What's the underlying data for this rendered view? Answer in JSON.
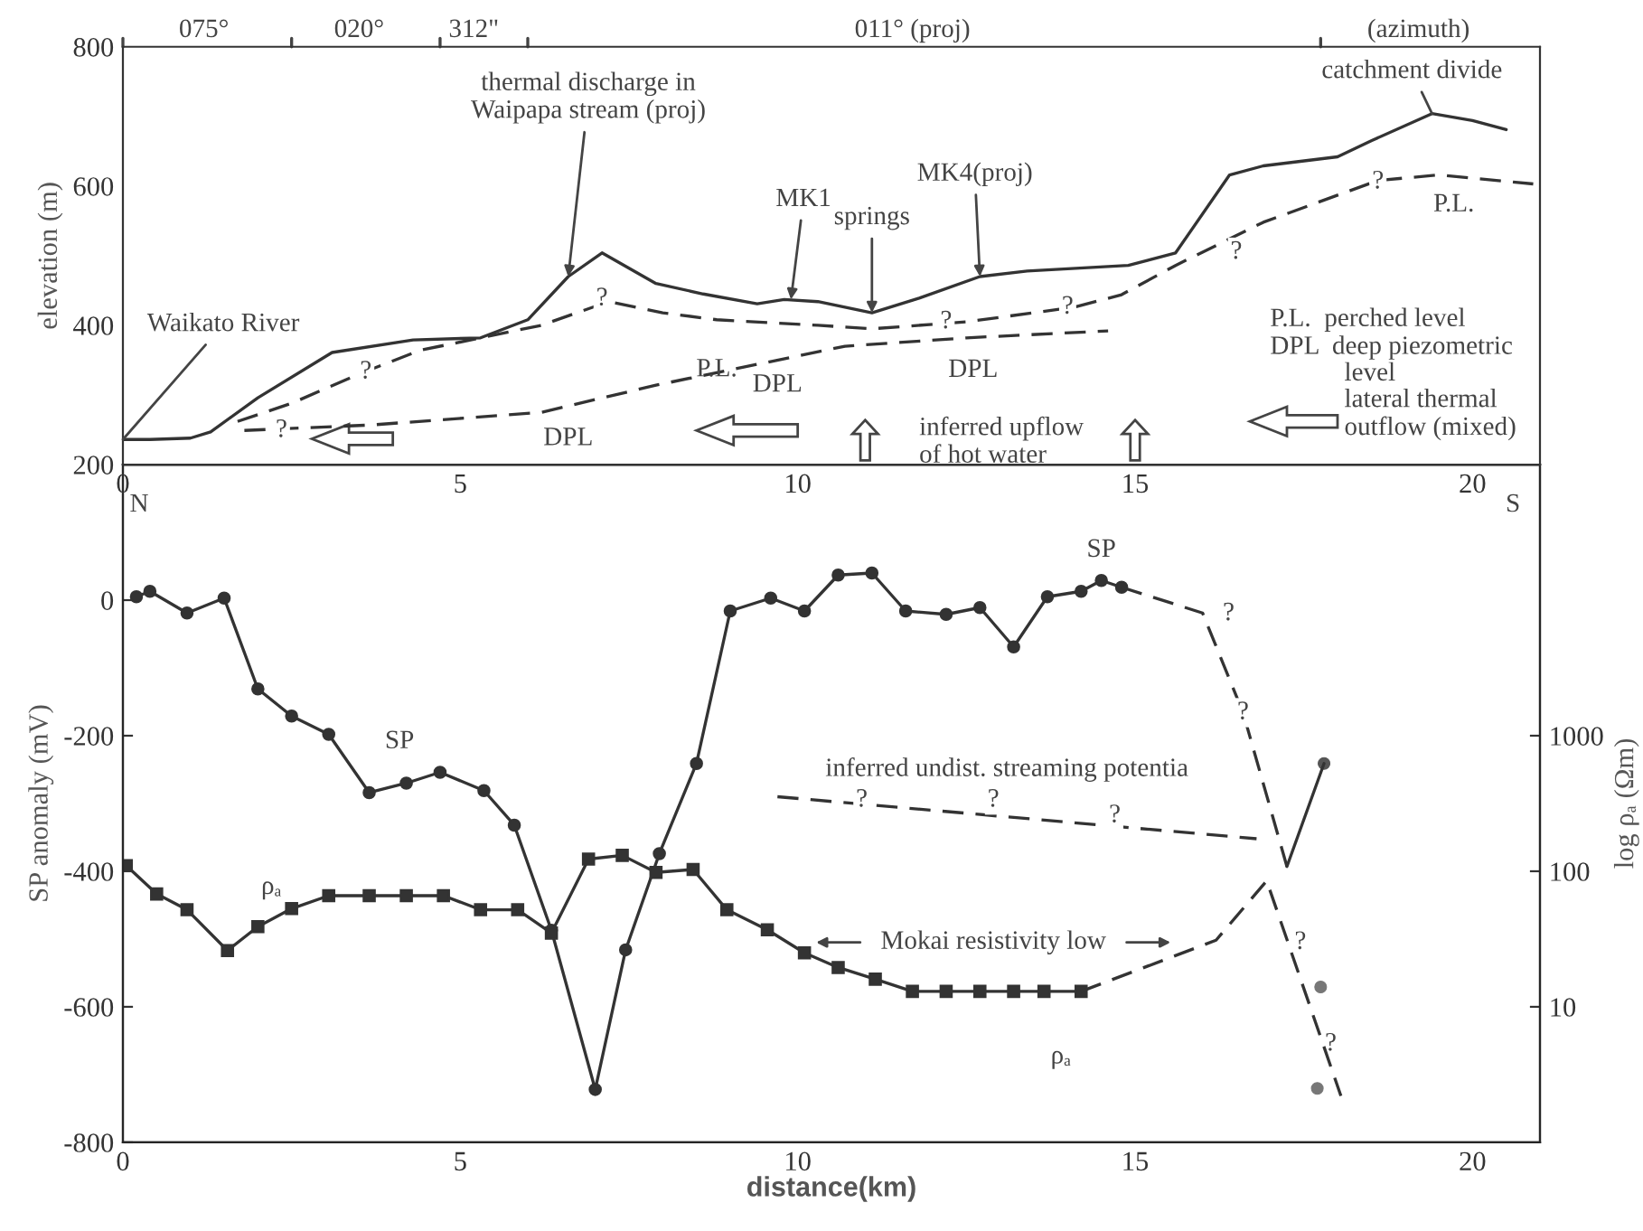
{
  "chart_data": [
    {
      "type": "line",
      "ylabel": "elevation (m)",
      "xlim": [
        0,
        21
      ],
      "ylim": [
        200,
        800
      ],
      "xticks": [
        0,
        5,
        10,
        15,
        20
      ],
      "yticks": [
        200,
        400,
        600,
        800
      ],
      "series": [
        {
          "color": "#333333",
          "line_style": "solid",
          "x": [
            0,
            0.4,
            1.0,
            1.3,
            2.0,
            3.1,
            4.3,
            5.3,
            6.0,
            6.6,
            7.1,
            7.9,
            8.6,
            9.4,
            9.8,
            10.3,
            11.1,
            11.8,
            12.7,
            13.4,
            14.9,
            15.6,
            16.4,
            16.9,
            18.0,
            18.5,
            19.4,
            20.0,
            20.5
          ],
          "values": [
            236,
            236,
            238,
            247,
            296,
            361,
            379,
            382,
            408,
            470,
            504,
            460,
            445,
            431,
            437,
            434,
            418,
            439,
            470,
            478,
            486,
            504,
            616,
            629,
            642,
            665,
            704,
            694,
            681
          ]
        },
        {
          "color": "#333333",
          "line_style": "dashed",
          "x": [
            1.7,
            2.5,
            3.5,
            4.4,
            6.2,
            7.2,
            8.0,
            8.8,
            10.3,
            11.1,
            12.5,
            14.1,
            14.8,
            15.6,
            16.9,
            18.6,
            19.5,
            20.9
          ],
          "values": [
            262,
            288,
            330,
            364,
            400,
            434,
            418,
            408,
            400,
            395,
            405,
            426,
            444,
            486,
            548,
            608,
            616,
            603
          ]
        },
        {
          "color": "#333333",
          "line_style": "dashed",
          "x": [
            1.8,
            3.7,
            6.2,
            7.9,
            9.2,
            10.7,
            12.5,
            14.6
          ],
          "values": [
            249,
            257,
            275,
            314,
            340,
            370,
            382,
            392
          ]
        }
      ],
      "annotations": [
        {
          "text": "Waikato River",
          "x": 0,
          "y": 236
        },
        {
          "text": "thermal discharge in\nWaipapa stream (proj)",
          "x": 6.6,
          "y": 470
        },
        {
          "text": "MK1",
          "x": 9.9,
          "y": 437
        },
        {
          "text": "springs",
          "x": 11.1,
          "y": 418
        },
        {
          "text": "MK4(proj)",
          "x": 12.7,
          "y": 470
        },
        {
          "text": "catchment divide",
          "x": 19.4,
          "y": 704
        },
        {
          "text": "P.L.",
          "x": 8.8,
          "y": 408
        },
        {
          "text": "P.L.",
          "x": 19.5,
          "y": 616
        },
        {
          "text": "DPL",
          "x": 6.6,
          "y": 284
        },
        {
          "text": "DPL",
          "x": 9.7,
          "y": 350
        },
        {
          "text": "DPL",
          "x": 12.6,
          "y": 382
        },
        "075°",
        "020°",
        "312\"",
        "011° (proj)",
        "(azimuth)",
        "P.L.  perched level",
        "DPL  deep piezometric",
        "level",
        "lateral thermal",
        "outflow (mixed)",
        "inferred upflow\nof hot water",
        "?",
        "?",
        "?",
        "?",
        "?",
        "?",
        "?"
      ]
    },
    {
      "type": "line",
      "xlabel": "distance(km)",
      "ylabel": "SP anomaly (mV)",
      "y2label": "log ρₐ (Ωm)",
      "xlim": [
        0,
        21
      ],
      "ylim": [
        -800,
        200
      ],
      "xticks": [
        0,
        5,
        10,
        15,
        20
      ],
      "yticks": [
        -800,
        -600,
        -400,
        -200,
        0
      ],
      "y2lim": [
        1,
        100000
      ],
      "y2ticks": [
        10,
        100,
        1000
      ],
      "log": "y2",
      "series": [
        {
          "color": "#333333",
          "line_style": "solid",
          "marker": "circle",
          "x": [
            0.2,
            0.4,
            0.95,
            1.5,
            2.0,
            2.5,
            3.05,
            3.65,
            4.2,
            4.7,
            5.35,
            5.8,
            6.35,
            7.0,
            7.45,
            7.95,
            8.5,
            9.0,
            9.6,
            10.1,
            10.6,
            11.1,
            11.6,
            12.2,
            12.7,
            13.2,
            13.7,
            14.2,
            14.5,
            14.8
          ],
          "values": [
            5,
            13,
            -19,
            3,
            -131,
            -171,
            -198,
            -284,
            -270,
            -254,
            -281,
            -332,
            -487,
            -722,
            -516,
            -374,
            -241,
            -16,
            3,
            -16,
            37,
            40,
            -16,
            -21,
            -11,
            -69,
            5,
            13,
            29,
            19
          ]
        },
        {
          "color": "#333333",
          "line_style": "dashed",
          "x": [
            14.8,
            16.0,
            16.6,
            17.25
          ],
          "values": [
            19,
            -19,
            -166,
            -393
          ]
        },
        {
          "color": "#333333",
          "line_style": "solid",
          "x": [
            17.25,
            17.8
          ],
          "values": [
            -393,
            -241
          ]
        },
        {
          "type": "scatter",
          "color": "#555555",
          "marker": "circle",
          "x": [
            17.8
          ],
          "values": [
            -241
          ]
        },
        {
          "color": "#333333",
          "line_style": "dashed",
          "x": [
            9.7,
            16.8
          ],
          "values": [
            -290,
            -352
          ]
        },
        {
          "color": "#333333",
          "line_style": "solid",
          "marker": "square",
          "axis": "y2",
          "x": [
            0.05,
            0.5,
            0.95,
            1.55,
            2.0,
            2.5,
            3.05,
            3.65,
            4.2,
            4.75,
            5.3,
            5.85,
            6.35,
            6.9,
            7.4,
            7.9,
            8.45,
            8.95,
            9.55,
            10.1,
            10.6,
            11.15,
            11.7,
            12.2,
            12.7,
            13.2,
            13.65,
            14.2
          ],
          "values": [
            110,
            68,
            52,
            26,
            39,
            53,
            66,
            66,
            66,
            66,
            52,
            52,
            35,
            123,
            131,
            98,
            103,
            52,
            37,
            25,
            19.5,
            16,
            13,
            13,
            13,
            13,
            13,
            13
          ]
        },
        {
          "color": "#333333",
          "line_style": "dashed",
          "axis": "y2",
          "x": [
            14.2,
            16.2,
            16.95,
            18.05
          ],
          "values": [
            13,
            31,
            85,
            2.2
          ]
        },
        {
          "type": "scatter",
          "color": "#777777",
          "marker": "circle",
          "axis": "y2",
          "x": [
            17.75,
            17.7
          ],
          "values": [
            14,
            2.5
          ]
        }
      ],
      "annotations": [
        {
          "text": "SP",
          "x": 4.1,
          "y": -272
        },
        {
          "text": "SP",
          "x": 14.5,
          "y": 29
        },
        "N",
        "S",
        "ρₐ",
        "ρₐ",
        "Mokai resistivity low",
        "inferred undist. streaming potentia",
        "?",
        "?",
        "?",
        "?",
        "?",
        "?",
        "?"
      ]
    }
  ]
}
